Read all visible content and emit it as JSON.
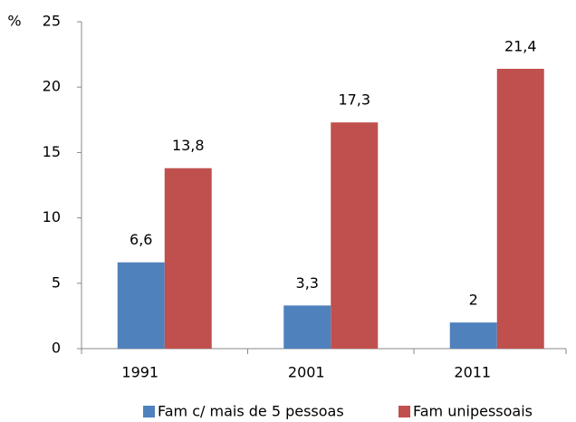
{
  "chart_data": {
    "type": "bar",
    "y_label": "%",
    "categories": [
      "1991",
      "2001",
      "2011"
    ],
    "series": [
      {
        "name": "Fam c/ mais de 5 pessoas",
        "color": "#4f81bd",
        "values": [
          6.6,
          3.3,
          2
        ],
        "value_labels": [
          "6,6",
          "3,3",
          "2"
        ]
      },
      {
        "name": "Fam unipessoais",
        "color": "#c0504d",
        "values": [
          13.8,
          17.3,
          21.4
        ],
        "value_labels": [
          "13,8",
          "17,3",
          "21,4"
        ]
      }
    ],
    "ylim": [
      0,
      25
    ],
    "yticks": [
      0,
      5,
      10,
      15,
      20,
      25
    ],
    "grid": false,
    "legend": "bottom"
  }
}
